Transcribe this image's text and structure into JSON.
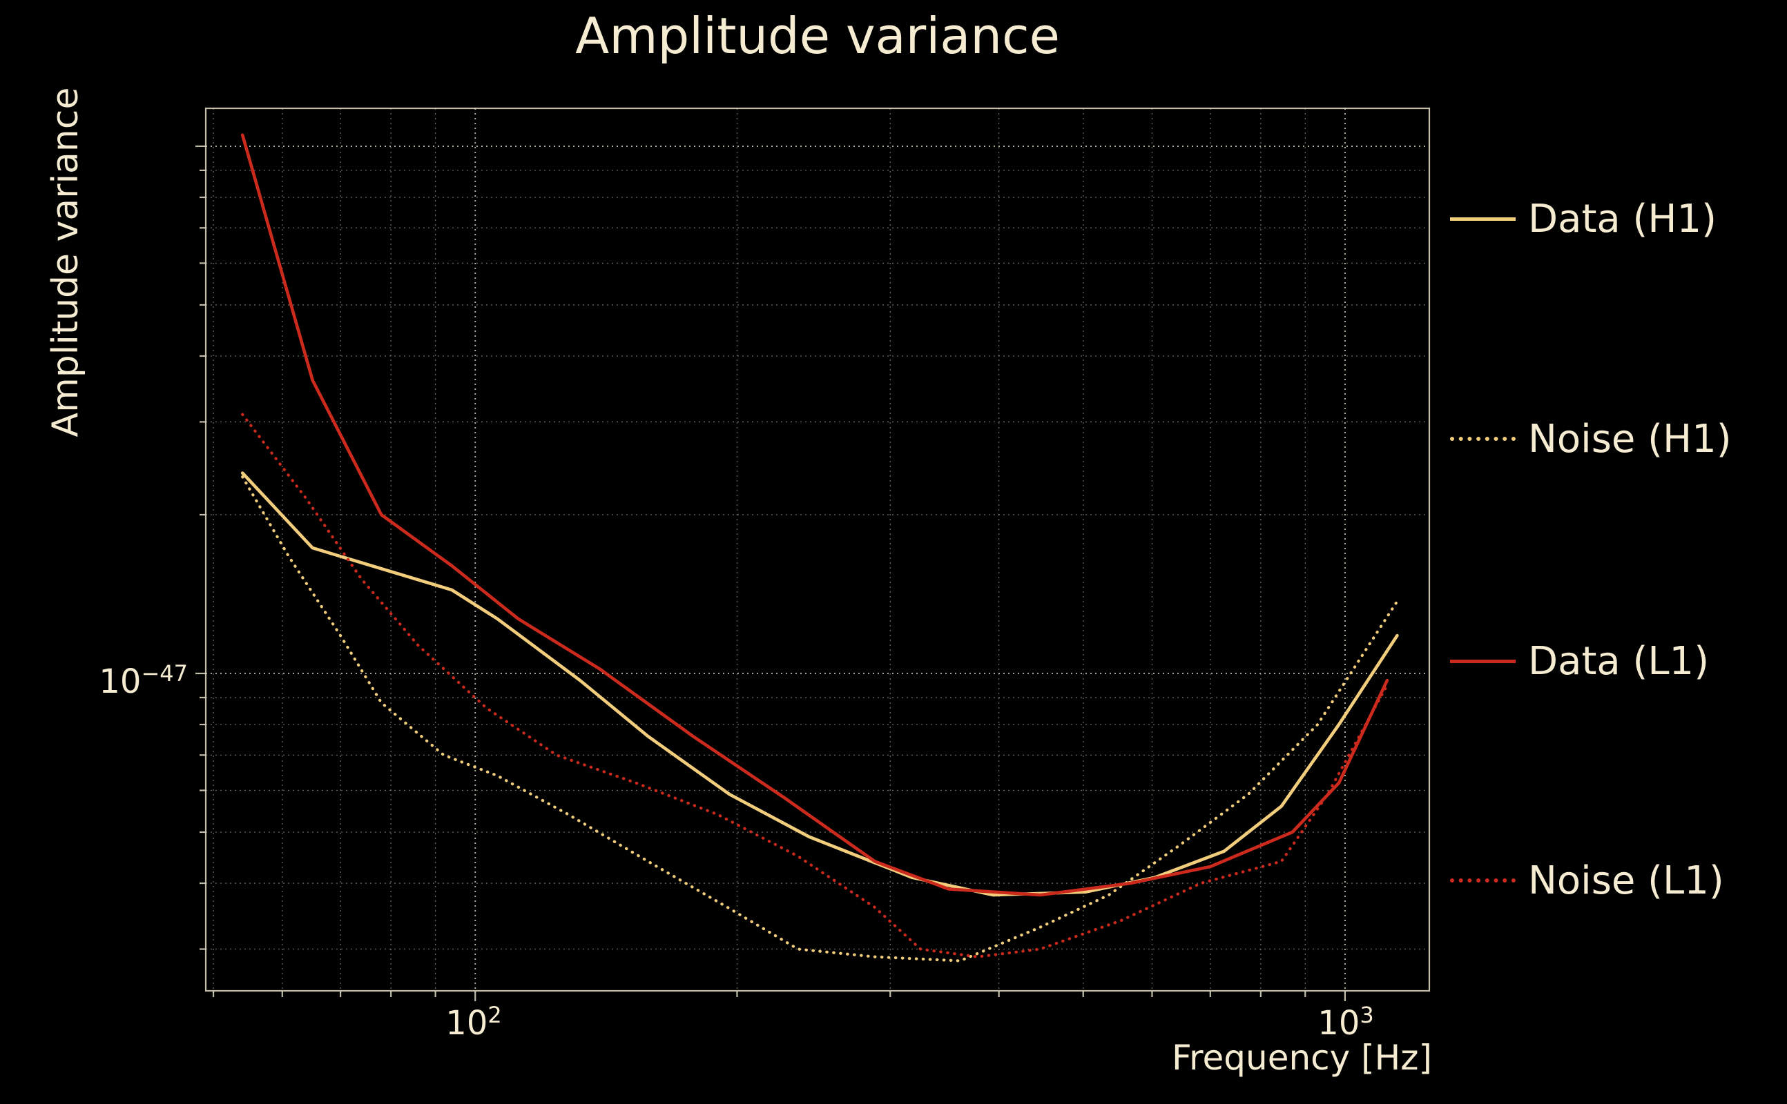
{
  "title": "Amplitude variance",
  "axes": {
    "xlabel": "Frequency [Hz]",
    "ylabel": "Amplitude variance",
    "x_ticks": [
      {
        "base": "10",
        "exp": "2"
      },
      {
        "base": "10",
        "exp": "3"
      }
    ],
    "y_ticks": [
      {
        "base": "10",
        "exp": "−47"
      }
    ]
  },
  "legend": [
    {
      "label": "Data (H1)",
      "color": "#f2cd7c",
      "style": "solid"
    },
    {
      "label": "Noise (H1)",
      "color": "#f2cd7c",
      "style": "dotted"
    },
    {
      "label": "Data (L1)",
      "color": "#cd2a1e",
      "style": "solid"
    },
    {
      "label": "Noise (L1)",
      "color": "#cd2a1e",
      "style": "dotted"
    }
  ],
  "colors": {
    "background": "#000000",
    "text": "#f6ecd2",
    "grid": "#d8d1bd",
    "spine": "#d8d1bd",
    "series_yellow": "#f2cd7c",
    "series_red": "#cd2a1e"
  },
  "chart_data": {
    "type": "line",
    "title": "Amplitude variance",
    "xlabel": "Frequency [Hz]",
    "ylabel": "Amplitude variance",
    "xscale": "log",
    "yscale": "log",
    "xlim": [
      49,
      1250
    ],
    "ylim": [
      2.5e-48,
      1.18e-46
    ],
    "grid": true,
    "legend_position": "right outside",
    "series": [
      {
        "name": "Data (H1)",
        "color": "#f2cd7c",
        "style": "solid",
        "points": [
          [
            54,
            2.4e-47
          ],
          [
            65,
            1.73e-47
          ],
          [
            94,
            1.44e-47
          ],
          [
            106,
            1.27e-47
          ],
          [
            132,
            9.7e-48
          ],
          [
            158,
            7.6e-48
          ],
          [
            196,
            5.9e-48
          ],
          [
            242,
            4.9e-48
          ],
          [
            318,
            4.1e-48
          ],
          [
            394,
            3.8e-48
          ],
          [
            503,
            3.85e-48
          ],
          [
            604,
            4.1e-48
          ],
          [
            726,
            4.6e-48
          ],
          [
            845,
            5.6e-48
          ],
          [
            984,
            8e-48
          ],
          [
            1148,
            1.18e-47
          ]
        ]
      },
      {
        "name": "Noise (H1)",
        "color": "#f2cd7c",
        "style": "dotted",
        "points": [
          [
            54,
            2.36e-47
          ],
          [
            61,
            1.67e-47
          ],
          [
            70,
            1.18e-47
          ],
          [
            78,
            8.8e-48
          ],
          [
            92,
            7e-48
          ],
          [
            106,
            6.4e-48
          ],
          [
            128,
            5.4e-48
          ],
          [
            158,
            4.4e-48
          ],
          [
            195,
            3.6e-48
          ],
          [
            235,
            3e-48
          ],
          [
            288,
            2.9e-48
          ],
          [
            361,
            2.85e-48
          ],
          [
            446,
            3.3e-48
          ],
          [
            535,
            3.8e-48
          ],
          [
            643,
            4.7e-48
          ],
          [
            774,
            5.9e-48
          ],
          [
            930,
            8e-48
          ],
          [
            1148,
            1.37e-47
          ]
        ]
      },
      {
        "name": "Data (L1)",
        "color": "#cd2a1e",
        "style": "solid",
        "points": [
          [
            54,
            1.05e-46
          ],
          [
            65,
            3.6e-47
          ],
          [
            78,
            2e-47
          ],
          [
            94,
            1.6e-47
          ],
          [
            112,
            1.27e-47
          ],
          [
            139,
            1.02e-47
          ],
          [
            178,
            7.6e-48
          ],
          [
            227,
            5.8e-48
          ],
          [
            288,
            4.4e-48
          ],
          [
            350,
            3.9e-48
          ],
          [
            446,
            3.8e-48
          ],
          [
            567,
            4e-48
          ],
          [
            700,
            4.3e-48
          ],
          [
            870,
            5e-48
          ],
          [
            984,
            6.2e-48
          ],
          [
            1118,
            9.7e-48
          ]
        ]
      },
      {
        "name": "Noise (L1)",
        "color": "#cd2a1e",
        "style": "dotted",
        "points": [
          [
            54,
            3.1e-47
          ],
          [
            64,
            2.14e-47
          ],
          [
            74,
            1.51e-47
          ],
          [
            86,
            1.13e-47
          ],
          [
            103,
            8.6e-48
          ],
          [
            124,
            7e-48
          ],
          [
            153,
            6.2e-48
          ],
          [
            190,
            5.4e-48
          ],
          [
            235,
            4.5e-48
          ],
          [
            288,
            3.6e-48
          ],
          [
            325,
            3e-48
          ],
          [
            378,
            2.9e-48
          ],
          [
            446,
            3e-48
          ],
          [
            553,
            3.4e-48
          ],
          [
            683,
            4e-48
          ],
          [
            845,
            4.4e-48
          ],
          [
            955,
            5.9e-48
          ],
          [
            1118,
            9.5e-48
          ]
        ]
      }
    ]
  }
}
